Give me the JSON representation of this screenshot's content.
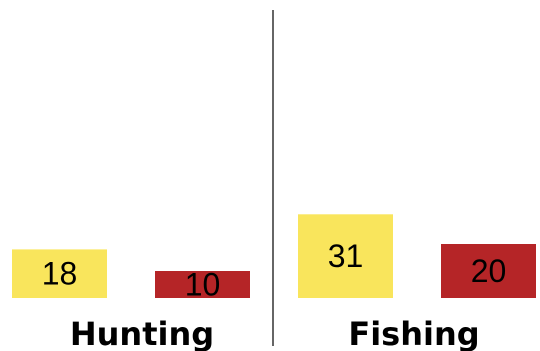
{
  "chart_data": {
    "type": "bar",
    "groups": [
      {
        "label": "Hunting",
        "values": [
          18,
          10
        ]
      },
      {
        "label": "Fishing",
        "values": [
          31,
          20
        ]
      }
    ],
    "series_colors": [
      "#f9e55c",
      "#b52527"
    ],
    "divider_color": "#333333",
    "grid": false,
    "legend": "none"
  }
}
